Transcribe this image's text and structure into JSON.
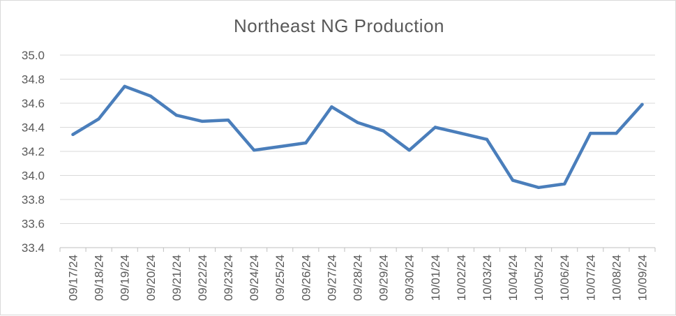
{
  "chart_data": {
    "type": "line",
    "title": "Northeast NG Production",
    "xlabel": "",
    "ylabel": "",
    "ylim": [
      33.4,
      35.0
    ],
    "ytick_step": 0.2,
    "ytick_labels": [
      "33.4",
      "33.6",
      "33.8",
      "34.0",
      "34.2",
      "34.4",
      "34.6",
      "34.8",
      "35.0"
    ],
    "categories": [
      "09/17/24",
      "09/18/24",
      "09/19/24",
      "09/20/24",
      "09/21/24",
      "09/22/24",
      "09/23/24",
      "09/24/24",
      "09/25/24",
      "09/26/24",
      "09/27/24",
      "09/28/24",
      "09/29/24",
      "09/30/24",
      "10/01/24",
      "10/02/24",
      "10/03/24",
      "10/04/24",
      "10/05/24",
      "10/06/24",
      "10/07/24",
      "10/08/24",
      "10/09/24"
    ],
    "series": [
      {
        "values": [
          34.34,
          34.47,
          34.74,
          34.66,
          34.5,
          34.45,
          34.46,
          34.21,
          34.24,
          34.27,
          34.57,
          34.44,
          34.37,
          34.21,
          34.4,
          34.35,
          34.3,
          33.96,
          33.9,
          33.93,
          34.35,
          34.35,
          34.59
        ],
        "color": "#4a7ebb"
      }
    ],
    "grid": true,
    "legend": "none"
  }
}
